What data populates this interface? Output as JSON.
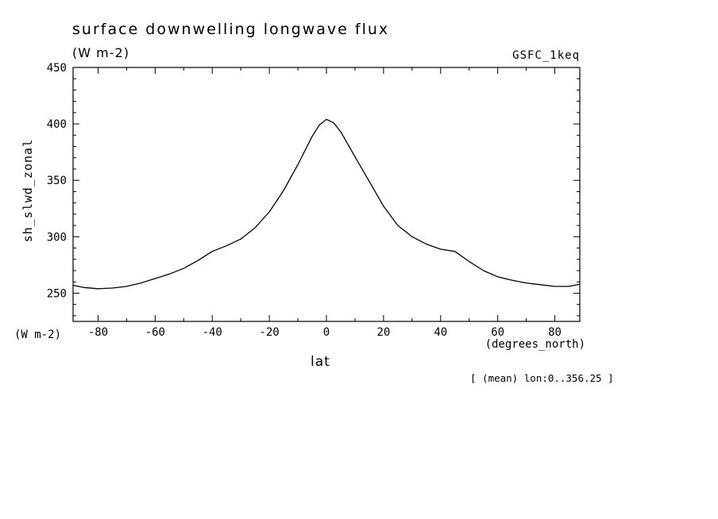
{
  "header": {
    "title": "surface downwelling longwave flux",
    "units": "(W m-2)",
    "dataset": "GSFC_1keq"
  },
  "axes": {
    "y_label": "sh_slwd_zonal",
    "y_units": "(W m-2)",
    "x_label": "lat",
    "x_units": "(degrees_north)"
  },
  "footer": "[ (mean) lon:0..356.25 ]",
  "chart_data": {
    "type": "line",
    "title": "surface downwelling longwave flux (W m-2), GSFC_1keq",
    "xlabel": "lat (degrees_north)",
    "ylabel": "sh_slwd_zonal (W m-2)",
    "annotation": "[ (mean) lon:0..356.25 ]",
    "grid": false,
    "legend": "none",
    "line_color": "#000000",
    "background": "#ffffff",
    "xlim": [
      -88.75,
      88.75
    ],
    "ylim": [
      225,
      450
    ],
    "x_ticks": [
      -80,
      -60,
      -40,
      -20,
      0,
      20,
      40,
      60,
      80
    ],
    "y_ticks": [
      250,
      300,
      350,
      400,
      450
    ],
    "x_minor_step": 10,
    "y_minor_step": 10,
    "x": [
      -88.75,
      -85,
      -80,
      -75,
      -70,
      -65,
      -60,
      -55,
      -50,
      -45,
      -40,
      -35,
      -30,
      -25,
      -20,
      -15,
      -10,
      -5,
      -2.5,
      0,
      2.5,
      5,
      10,
      15,
      20,
      25,
      30,
      35,
      40,
      45,
      50,
      55,
      60,
      65,
      70,
      75,
      80,
      85,
      88.75
    ],
    "y": [
      257,
      255,
      254,
      254.5,
      256,
      259,
      263,
      267,
      272,
      279,
      287,
      292,
      298,
      308,
      322,
      341,
      364,
      389,
      399,
      404,
      401,
      393,
      371,
      349,
      327,
      310,
      300,
      293.5,
      289,
      287,
      278,
      270,
      264.5,
      261.5,
      259,
      257.5,
      256,
      256,
      258
    ]
  }
}
